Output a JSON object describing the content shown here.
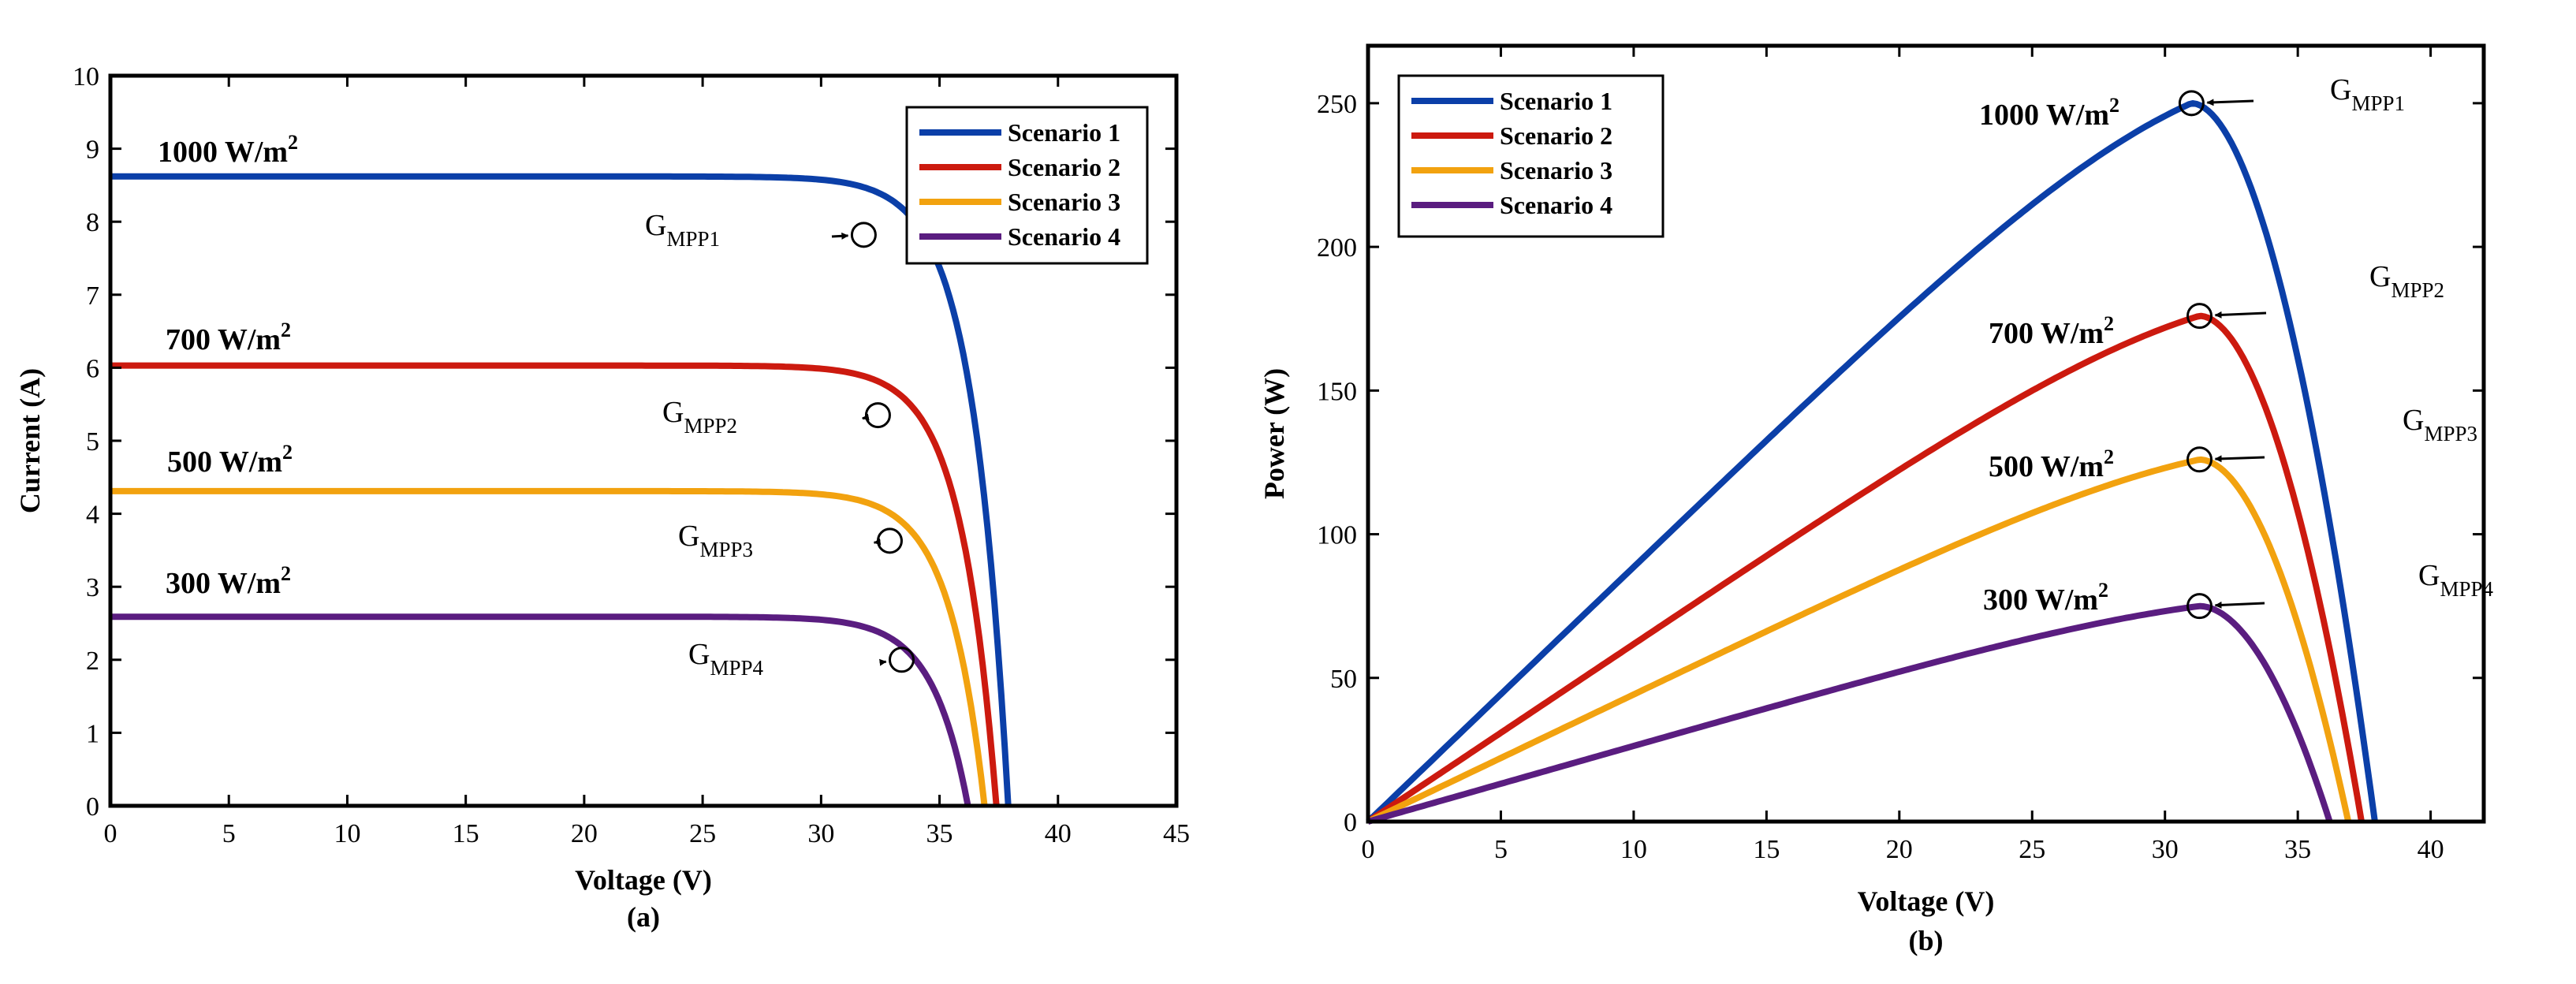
{
  "colors": {
    "scenario1": "#0b3fa8",
    "scenario2": "#cc1a0f",
    "scenario3": "#f2a20f",
    "scenario4": "#5a1d80"
  },
  "chart_data": [
    {
      "id": "a",
      "type": "line",
      "caption": "(a)",
      "xlabel": "Voltage (V)",
      "ylabel": "Current (A)",
      "xlim": [
        0,
        45
      ],
      "ylim": [
        0,
        10
      ],
      "xticks": [
        0,
        5,
        10,
        15,
        20,
        25,
        30,
        35,
        40,
        45
      ],
      "yticks": [
        0,
        1,
        2,
        3,
        4,
        5,
        6,
        7,
        8,
        9,
        10
      ],
      "legend": {
        "position": "top-right",
        "entries": [
          "Scenario 1",
          "Scenario 2",
          "Scenario 3",
          "Scenario 4"
        ]
      },
      "series": [
        {
          "name": "Scenario 1",
          "color_key": "scenario1",
          "irradiance": "1000 W/m",
          "isc": 8.62,
          "voc": 37.9,
          "vt": 1.5,
          "mpp": {
            "x": 31.8,
            "y": 7.82,
            "label": "G",
            "sub": "MPP1"
          }
        },
        {
          "name": "Scenario 2",
          "color_key": "scenario2",
          "irradiance": "700 W/m",
          "isc": 6.03,
          "voc": 37.4,
          "vt": 1.5,
          "mpp": {
            "x": 32.4,
            "y": 5.35,
            "label": "G",
            "sub": "MPP2"
          }
        },
        {
          "name": "Scenario 3",
          "color_key": "scenario3",
          "irradiance": "500 W/m",
          "isc": 4.31,
          "voc": 36.9,
          "vt": 1.5,
          "mpp": {
            "x": 32.9,
            "y": 3.63,
            "label": "G",
            "sub": "MPP3"
          }
        },
        {
          "name": "Scenario 4",
          "color_key": "scenario4",
          "irradiance": "300 W/m",
          "isc": 2.59,
          "voc": 36.2,
          "vt": 1.5,
          "mpp": {
            "x": 33.4,
            "y": 2.0,
            "label": "G",
            "sub": "MPP4"
          }
        }
      ]
    },
    {
      "id": "b",
      "type": "line",
      "caption": "(b)",
      "xlabel": "Voltage (V)",
      "ylabel": "Power (W)",
      "xlim": [
        0,
        42
      ],
      "ylim": [
        0,
        270
      ],
      "xticks": [
        0,
        5,
        10,
        15,
        20,
        25,
        30,
        35,
        40
      ],
      "yticks": [
        0,
        50,
        100,
        150,
        200,
        250
      ],
      "legend": {
        "position": "top-left",
        "entries": [
          "Scenario 1",
          "Scenario 2",
          "Scenario 3",
          "Scenario 4"
        ]
      },
      "series": [
        {
          "name": "Scenario 1",
          "color_key": "scenario1",
          "irradiance": "1000 W/m",
          "vmp": 31,
          "pmax": 250,
          "voc": 37.9,
          "mpp": {
            "x": 31,
            "y": 250,
            "label": "G",
            "sub": "MPP1"
          }
        },
        {
          "name": "Scenario 2",
          "color_key": "scenario2",
          "irradiance": "700 W/m",
          "vmp": 31.3,
          "pmax": 176,
          "voc": 37.4,
          "mpp": {
            "x": 31.3,
            "y": 176,
            "label": "G",
            "sub": "MPP2"
          }
        },
        {
          "name": "Scenario 3",
          "color_key": "scenario3",
          "irradiance": "500 W/m",
          "vmp": 31.3,
          "pmax": 126,
          "voc": 36.9,
          "mpp": {
            "x": 31.3,
            "y": 126,
            "label": "G",
            "sub": "MPP3"
          }
        },
        {
          "name": "Scenario 4",
          "color_key": "scenario4",
          "irradiance": "300 W/m",
          "vmp": 31.3,
          "pmax": 75,
          "voc": 36.2,
          "mpp": {
            "x": 31.3,
            "y": 75,
            "label": "G",
            "sub": "MPP4"
          }
        }
      ]
    }
  ],
  "superscript": "2"
}
